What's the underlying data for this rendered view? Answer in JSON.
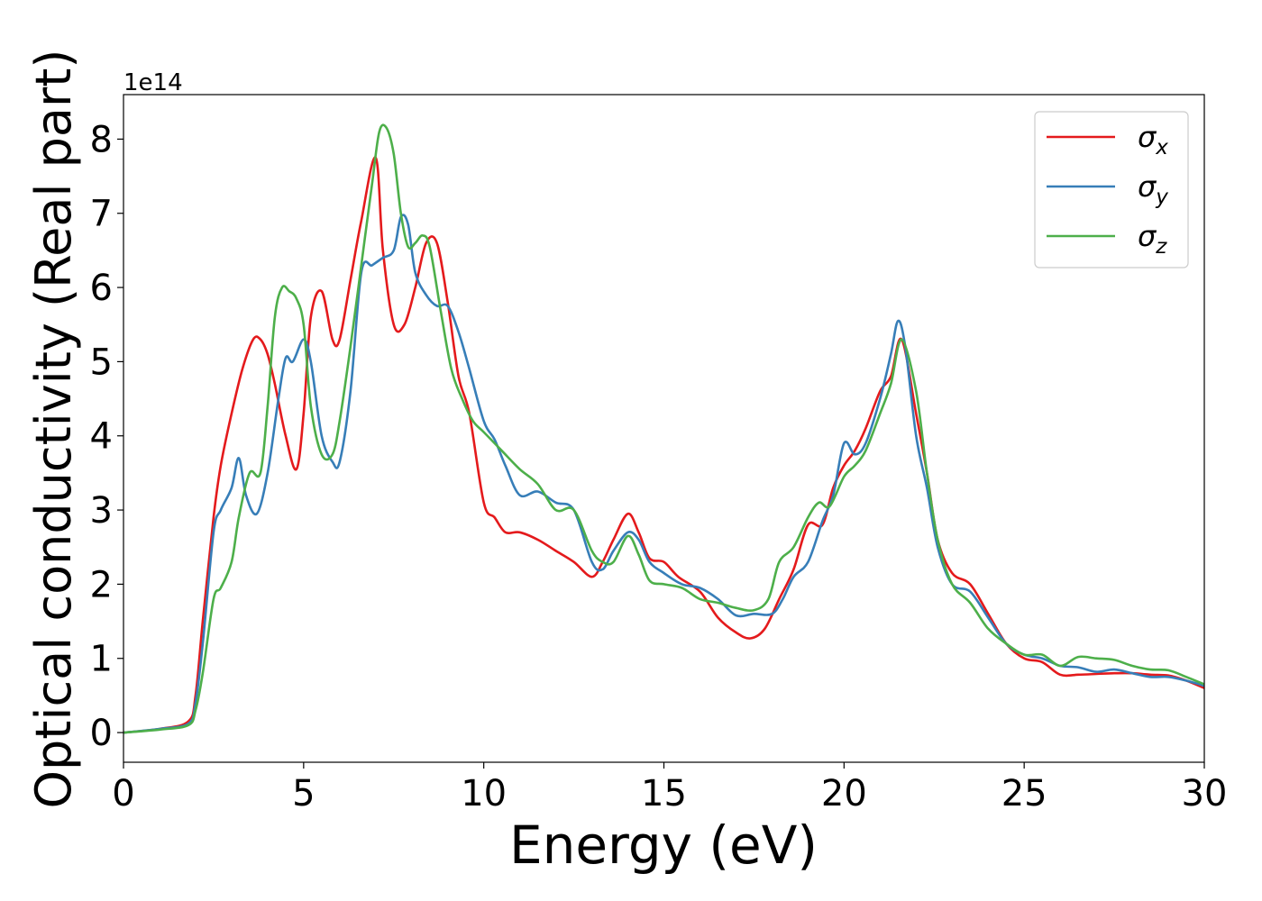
{
  "chart_data": {
    "type": "line",
    "xlabel": "Energy (eV)",
    "ylabel": "Optical conductivity (Real part)",
    "offset_label": "1e14",
    "xlim": [
      0,
      30
    ],
    "ylim": [
      -0.4,
      8.6
    ],
    "xticks": [
      0,
      5,
      10,
      15,
      20,
      25,
      30
    ],
    "yticks": [
      0,
      1,
      2,
      3,
      4,
      5,
      6,
      7,
      8
    ],
    "grid": false,
    "legend_position": "top-right",
    "series": [
      {
        "name": "σx",
        "legend_symbol": "σ",
        "legend_sub": "x",
        "color": "#e41a1c",
        "x": [
          0,
          1,
          1.8,
          2,
          2.2,
          2.5,
          2.7,
          3,
          3.3,
          3.6,
          3.8,
          4,
          4.2,
          4.5,
          4.8,
          5,
          5.2,
          5.5,
          5.8,
          6,
          6.3,
          6.6,
          7,
          7.2,
          7.5,
          7.8,
          8.1,
          8.4,
          8.7,
          9,
          9.3,
          9.6,
          10,
          10.3,
          10.6,
          11,
          11.5,
          12,
          12.5,
          13,
          13.3,
          13.6,
          14,
          14.3,
          14.6,
          15,
          15.4,
          16,
          16.5,
          17,
          17.4,
          17.8,
          18.2,
          18.6,
          19,
          19.4,
          19.7,
          20,
          20.3,
          20.6,
          21,
          21.3,
          21.6,
          22,
          22.3,
          22.6,
          23,
          23.5,
          24,
          24.5,
          25,
          25.5,
          26,
          26.5,
          27,
          27.5,
          28,
          28.5,
          29,
          29.5,
          30
        ],
        "y": [
          0,
          0.05,
          0.15,
          0.5,
          1.5,
          2.9,
          3.6,
          4.3,
          4.9,
          5.3,
          5.3,
          5.1,
          4.7,
          4.0,
          3.55,
          4.3,
          5.6,
          5.95,
          5.3,
          5.3,
          6.1,
          6.9,
          7.75,
          6.5,
          5.5,
          5.5,
          6.0,
          6.6,
          6.6,
          5.8,
          4.8,
          4.3,
          3.1,
          2.9,
          2.7,
          2.7,
          2.6,
          2.45,
          2.3,
          2.1,
          2.3,
          2.6,
          2.95,
          2.7,
          2.35,
          2.3,
          2.1,
          1.9,
          1.55,
          1.35,
          1.27,
          1.4,
          1.8,
          2.2,
          2.8,
          2.8,
          3.3,
          3.6,
          3.8,
          4.1,
          4.6,
          4.8,
          5.3,
          4.3,
          3.5,
          2.6,
          2.15,
          2.0,
          1.6,
          1.2,
          1.0,
          0.95,
          0.78,
          0.78,
          0.79,
          0.8,
          0.8,
          0.78,
          0.77,
          0.7,
          0.6
        ]
      },
      {
        "name": "σy",
        "legend_symbol": "σ",
        "legend_sub": "y",
        "color": "#377eb8",
        "x": [
          0,
          1,
          1.8,
          2,
          2.2,
          2.5,
          2.7,
          3,
          3.2,
          3.4,
          3.7,
          4,
          4.3,
          4.5,
          4.7,
          5,
          5.2,
          5.5,
          5.8,
          6,
          6.3,
          6.6,
          6.9,
          7.2,
          7.5,
          7.7,
          7.9,
          8.1,
          8.4,
          8.7,
          9,
          9.3,
          9.6,
          10,
          10.3,
          10.6,
          11,
          11.5,
          12,
          12.5,
          13,
          13.3,
          13.6,
          14,
          14.3,
          14.6,
          15,
          15.5,
          16,
          16.5,
          17,
          17.5,
          18,
          18.3,
          18.6,
          19,
          19.4,
          19.7,
          20,
          20.3,
          20.6,
          21,
          21.3,
          21.5,
          21.7,
          22,
          22.3,
          22.6,
          23,
          23.5,
          24,
          24.5,
          25,
          25.5,
          26,
          26.5,
          27,
          27.5,
          28,
          28.5,
          29,
          29.5,
          30
        ],
        "y": [
          0,
          0.05,
          0.12,
          0.4,
          1.2,
          2.7,
          3.0,
          3.3,
          3.7,
          3.2,
          2.95,
          3.5,
          4.5,
          5.05,
          5.0,
          5.3,
          5.0,
          4.0,
          3.65,
          3.65,
          4.6,
          6.2,
          6.3,
          6.4,
          6.5,
          6.95,
          6.85,
          6.2,
          5.9,
          5.75,
          5.75,
          5.4,
          4.9,
          4.2,
          3.95,
          3.6,
          3.2,
          3.25,
          3.1,
          3.0,
          2.3,
          2.2,
          2.45,
          2.7,
          2.6,
          2.3,
          2.15,
          2.0,
          1.95,
          1.8,
          1.58,
          1.6,
          1.6,
          1.8,
          2.1,
          2.3,
          2.85,
          3.2,
          3.9,
          3.75,
          3.9,
          4.5,
          5.1,
          5.55,
          5.2,
          4.0,
          3.3,
          2.5,
          2.0,
          1.9,
          1.55,
          1.2,
          1.05,
          1.0,
          0.9,
          0.88,
          0.82,
          0.85,
          0.8,
          0.75,
          0.75,
          0.7,
          0.63
        ]
      },
      {
        "name": "σz",
        "legend_symbol": "σ",
        "legend_sub": "z",
        "color": "#4daf4a",
        "x": [
          0,
          1,
          1.8,
          2,
          2.2,
          2.5,
          2.7,
          3,
          3.2,
          3.5,
          3.8,
          4,
          4.2,
          4.4,
          4.6,
          4.8,
          5,
          5.2,
          5.5,
          5.8,
          6,
          6.3,
          6.6,
          6.9,
          7.1,
          7.3,
          7.5,
          7.7,
          7.9,
          8.1,
          8.3,
          8.5,
          8.8,
          9.1,
          9.4,
          9.7,
          10,
          10.5,
          11,
          11.5,
          12,
          12.5,
          13,
          13.3,
          13.6,
          14,
          14.3,
          14.6,
          15,
          15.5,
          16,
          16.5,
          17,
          17.5,
          17.9,
          18.2,
          18.6,
          19,
          19.3,
          19.6,
          20,
          20.3,
          20.6,
          21,
          21.3,
          21.6,
          22,
          22.3,
          22.6,
          23,
          23.5,
          24,
          24.5,
          25,
          25.5,
          26,
          26.5,
          27,
          27.5,
          28,
          28.5,
          29,
          29.5,
          30
        ],
        "y": [
          0,
          0.04,
          0.1,
          0.3,
          0.8,
          1.8,
          1.95,
          2.3,
          2.9,
          3.5,
          3.5,
          4.4,
          5.6,
          6.0,
          5.95,
          5.85,
          5.5,
          4.4,
          3.75,
          3.75,
          4.2,
          5.2,
          6.3,
          7.4,
          8.1,
          8.15,
          7.8,
          7.0,
          6.55,
          6.6,
          6.7,
          6.55,
          5.7,
          4.9,
          4.5,
          4.2,
          4.05,
          3.8,
          3.55,
          3.35,
          3.0,
          3.0,
          2.45,
          2.3,
          2.3,
          2.65,
          2.4,
          2.05,
          2.0,
          1.95,
          1.8,
          1.75,
          1.68,
          1.65,
          1.8,
          2.3,
          2.5,
          2.9,
          3.1,
          3.05,
          3.45,
          3.6,
          3.8,
          4.3,
          4.7,
          5.3,
          4.6,
          3.5,
          2.6,
          2.0,
          1.75,
          1.4,
          1.2,
          1.05,
          1.05,
          0.9,
          1.02,
          1.0,
          0.98,
          0.9,
          0.85,
          0.84,
          0.75,
          0.65
        ]
      }
    ]
  }
}
